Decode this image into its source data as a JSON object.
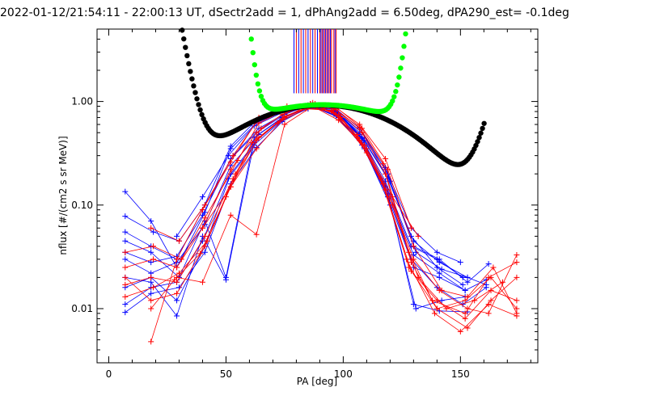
{
  "chart_data": {
    "type": "scatter",
    "title": "2022-01-12/21:54:11 - 22:00:13 UT, dSectr2add = 1, dPhAng2add = 6.50deg, dPA290_est=  -0.1deg",
    "xlabel": "PA [deg]",
    "ylabel": "nflux [#/(cm2 s sr MeV)]",
    "xlim": [
      -5,
      183
    ],
    "ylim": [
      0.003,
      5
    ],
    "yscale": "log",
    "x_ticks": [
      "0",
      "50",
      "100",
      "150"
    ],
    "y_ticks": [
      "0.01",
      "0.10",
      "1.00"
    ],
    "grid": false,
    "colors": {
      "red": "#ff0000",
      "blue": "#0000ff",
      "black": "#000000",
      "green": "#00ff00"
    },
    "vertical_lines": {
      "red": [
        80,
        82,
        84,
        86,
        88,
        90,
        91,
        92,
        93,
        94,
        95,
        96,
        97
      ],
      "blue": [
        79,
        81,
        83,
        85,
        87,
        89,
        90.5,
        91.5,
        92.5,
        93.5,
        94.5,
        96.5
      ]
    },
    "red_series": [
      [
        [
          7,
          0.035
        ],
        [
          19,
          0.04
        ],
        [
          31,
          0.03
        ],
        [
          41,
          0.075
        ],
        [
          55,
          0.27
        ],
        [
          64,
          0.62
        ],
        [
          75,
          0.82
        ],
        [
          86,
          0.94
        ],
        [
          96,
          0.86
        ],
        [
          107,
          0.56
        ],
        [
          117,
          0.25
        ],
        [
          128,
          0.035
        ],
        [
          138,
          0.012
        ],
        [
          152,
          0.009
        ],
        [
          162,
          0.02
        ],
        [
          174,
          0.028
        ]
      ],
      [
        [
          7,
          0.025
        ],
        [
          19,
          0.03
        ],
        [
          29,
          0.025
        ],
        [
          40,
          0.06
        ],
        [
          52,
          0.22
        ],
        [
          63,
          0.5
        ],
        [
          74,
          0.75
        ],
        [
          85,
          0.92
        ],
        [
          97,
          0.83
        ],
        [
          108,
          0.5
        ],
        [
          118,
          0.2
        ],
        [
          129,
          0.028
        ],
        [
          140,
          0.01
        ],
        [
          153,
          0.0065
        ],
        [
          163,
          0.012
        ],
        [
          174,
          0.02
        ]
      ],
      [
        [
          7,
          0.017
        ],
        [
          18,
          0.02
        ],
        [
          29,
          0.018
        ],
        [
          41,
          0.05
        ],
        [
          53,
          0.18
        ],
        [
          64,
          0.45
        ],
        [
          75,
          0.72
        ],
        [
          86,
          0.9
        ],
        [
          95,
          0.8
        ],
        [
          106,
          0.45
        ],
        [
          117,
          0.16
        ],
        [
          129,
          0.023
        ],
        [
          140,
          0.012
        ],
        [
          152,
          0.008
        ],
        [
          163,
          0.015
        ],
        [
          174,
          0.012
        ]
      ],
      [
        [
          7,
          0.013
        ],
        [
          19,
          0.016
        ],
        [
          30,
          0.022
        ],
        [
          42,
          0.045
        ],
        [
          54,
          0.2
        ],
        [
          65,
          0.55
        ],
        [
          76,
          0.8
        ],
        [
          87,
          0.93
        ],
        [
          98,
          0.75
        ],
        [
          109,
          0.38
        ],
        [
          120,
          0.12
        ],
        [
          130,
          0.03
        ],
        [
          141,
          0.015
        ],
        [
          153,
          0.01
        ],
        [
          162,
          0.009
        ],
        [
          174,
          0.033
        ]
      ],
      [
        [
          7,
          0.02
        ],
        [
          18,
          0.012
        ],
        [
          29,
          0.014
        ],
        [
          41,
          0.04
        ],
        [
          52,
          0.15
        ],
        [
          63,
          0.42
        ],
        [
          74,
          0.68
        ],
        [
          85,
          0.88
        ],
        [
          96,
          0.78
        ],
        [
          107,
          0.42
        ],
        [
          118,
          0.14
        ],
        [
          128,
          0.025
        ],
        [
          140,
          0.01
        ],
        [
          152,
          0.012
        ],
        [
          163,
          0.02
        ],
        [
          174,
          0.01
        ]
      ],
      [
        [
          18,
          0.0048
        ],
        [
          29,
          0.03
        ],
        [
          40,
          0.09
        ],
        [
          52,
          0.26
        ],
        [
          64,
          0.7
        ],
        [
          76,
          0.86
        ],
        [
          88,
          0.95
        ],
        [
          99,
          0.7
        ],
        [
          110,
          0.32
        ],
        [
          121,
          0.1
        ],
        [
          132,
          0.02
        ],
        [
          144,
          0.01
        ],
        [
          156,
          0.012
        ],
        [
          168,
          0.018
        ]
      ],
      [
        [
          18,
          0.06
        ],
        [
          30,
          0.045
        ],
        [
          41,
          0.1
        ],
        [
          53,
          0.3
        ],
        [
          64,
          0.68
        ],
        [
          76,
          0.9
        ],
        [
          87,
          0.97
        ],
        [
          97,
          0.88
        ],
        [
          108,
          0.55
        ],
        [
          119,
          0.22
        ],
        [
          130,
          0.04
        ],
        [
          142,
          0.015
        ],
        [
          153,
          0.013
        ],
        [
          164,
          0.025
        ],
        [
          174,
          0.009
        ]
      ],
      [
        [
          18,
          0.01
        ],
        [
          28,
          0.019
        ],
        [
          39,
          0.034
        ],
        [
          50,
          0.12
        ],
        [
          61,
          0.4
        ],
        [
          72,
          0.62
        ],
        [
          84,
          0.85
        ],
        [
          95,
          0.82
        ],
        [
          106,
          0.48
        ],
        [
          116,
          0.18
        ],
        [
          127,
          0.03
        ],
        [
          139,
          0.009
        ],
        [
          150,
          0.006
        ],
        [
          162,
          0.011
        ],
        [
          174,
          0.0085
        ]
      ],
      [
        [
          29,
          0.02
        ],
        [
          40,
          0.018
        ],
        [
          52,
          0.08
        ],
        [
          63,
          0.052
        ],
        [
          75,
          0.6
        ],
        [
          87,
          0.9
        ],
        [
          98,
          0.66
        ],
        [
          110,
          0.35
        ],
        [
          121,
          0.12
        ],
        [
          132,
          0.05
        ]
      ],
      [
        [
          40,
          0.06
        ],
        [
          52,
          0.15
        ],
        [
          63,
          0.35
        ],
        [
          75,
          0.7
        ],
        [
          86,
          0.95
        ],
        [
          96,
          0.9
        ],
        [
          107,
          0.6
        ],
        [
          118,
          0.28
        ],
        [
          129,
          0.06
        ]
      ]
    ],
    "blue_series": [
      [
        [
          7,
          0.135
        ],
        [
          18,
          0.07
        ],
        [
          29,
          0.025
        ],
        [
          41,
          0.085
        ],
        [
          52,
          0.35
        ],
        [
          63,
          0.62
        ],
        [
          75,
          0.82
        ],
        [
          86,
          0.9
        ],
        [
          97,
          0.8
        ],
        [
          108,
          0.5
        ],
        [
          119,
          0.2
        ],
        [
          130,
          0.04
        ],
        [
          141,
          0.03
        ],
        [
          153,
          0.018
        ],
        [
          162,
          0.027
        ]
      ],
      [
        [
          7,
          0.078
        ],
        [
          19,
          0.055
        ],
        [
          30,
          0.045
        ],
        [
          41,
          0.1
        ],
        [
          53,
          0.3
        ],
        [
          64,
          0.55
        ],
        [
          76,
          0.78
        ],
        [
          87,
          0.92
        ],
        [
          98,
          0.76
        ],
        [
          109,
          0.42
        ],
        [
          120,
          0.17
        ],
        [
          131,
          0.035
        ],
        [
          142,
          0.024
        ],
        [
          153,
          0.02
        ],
        [
          161,
          0.017
        ]
      ],
      [
        [
          7,
          0.055
        ],
        [
          18,
          0.04
        ],
        [
          29,
          0.03
        ],
        [
          40,
          0.09
        ],
        [
          52,
          0.37
        ],
        [
          63,
          0.66
        ],
        [
          74,
          0.8
        ],
        [
          86,
          0.95
        ],
        [
          97,
          0.72
        ],
        [
          108,
          0.38
        ],
        [
          119,
          0.12
        ],
        [
          130,
          0.025
        ],
        [
          141,
          0.02
        ],
        [
          152,
          0.015
        ],
        [
          161,
          0.019
        ]
      ],
      [
        [
          7,
          0.045
        ],
        [
          18,
          0.035
        ],
        [
          30,
          0.02
        ],
        [
          41,
          0.07
        ],
        [
          50,
          0.02
        ],
        [
          62,
          0.45
        ],
        [
          74,
          0.7
        ],
        [
          85,
          0.88
        ],
        [
          96,
          0.84
        ],
        [
          107,
          0.46
        ],
        [
          118,
          0.15
        ],
        [
          129,
          0.03
        ],
        [
          140,
          0.016
        ],
        [
          151,
          0.011
        ],
        [
          161,
          0.016
        ]
      ],
      [
        [
          7,
          0.035
        ],
        [
          18,
          0.028
        ],
        [
          29,
          0.032
        ],
        [
          40,
          0.08
        ],
        [
          52,
          0.28
        ],
        [
          63,
          0.5
        ],
        [
          75,
          0.75
        ],
        [
          86,
          0.93
        ],
        [
          97,
          0.78
        ],
        [
          108,
          0.4
        ],
        [
          119,
          0.13
        ],
        [
          130,
          0.011
        ],
        [
          141,
          0.0095
        ],
        [
          153,
          0.0093
        ]
      ],
      [
        [
          7,
          0.03
        ],
        [
          18,
          0.022
        ],
        [
          29,
          0.028
        ],
        [
          41,
          0.065
        ],
        [
          52,
          0.24
        ],
        [
          64,
          0.48
        ],
        [
          75,
          0.72
        ],
        [
          87,
          0.9
        ],
        [
          98,
          0.7
        ],
        [
          109,
          0.35
        ],
        [
          120,
          0.1
        ],
        [
          131,
          0.01
        ],
        [
          142,
          0.012
        ],
        [
          152,
          0.013
        ]
      ],
      [
        [
          7,
          0.02
        ],
        [
          18,
          0.018
        ],
        [
          29,
          0.0085
        ],
        [
          40,
          0.05
        ],
        [
          50,
          0.019
        ],
        [
          62,
          0.4
        ],
        [
          73,
          0.65
        ],
        [
          85,
          0.85
        ],
        [
          96,
          0.86
        ],
        [
          107,
          0.48
        ],
        [
          118,
          0.17
        ],
        [
          129,
          0.04
        ],
        [
          140,
          0.03
        ],
        [
          151,
          0.02
        ]
      ],
      [
        [
          7,
          0.016
        ],
        [
          18,
          0.02
        ],
        [
          29,
          0.012
        ],
        [
          41,
          0.04
        ],
        [
          52,
          0.2
        ],
        [
          63,
          0.42
        ],
        [
          75,
          0.7
        ],
        [
          86,
          0.9
        ],
        [
          97,
          0.74
        ],
        [
          108,
          0.44
        ],
        [
          119,
          0.14
        ],
        [
          130,
          0.033
        ],
        [
          141,
          0.022
        ],
        [
          152,
          0.015
        ]
      ],
      [
        [
          7,
          0.011
        ],
        [
          18,
          0.016
        ],
        [
          29,
          0.018
        ],
        [
          40,
          0.045
        ],
        [
          51,
          0.18
        ],
        [
          62,
          0.38
        ],
        [
          74,
          0.66
        ],
        [
          85,
          0.87
        ],
        [
          96,
          0.82
        ],
        [
          107,
          0.5
        ],
        [
          118,
          0.22
        ],
        [
          129,
          0.05
        ],
        [
          140,
          0.025
        ],
        [
          151,
          0.017
        ]
      ],
      [
        [
          7,
          0.0092
        ],
        [
          18,
          0.014
        ],
        [
          30,
          0.016
        ],
        [
          41,
          0.035
        ],
        [
          52,
          0.16
        ],
        [
          63,
          0.36
        ],
        [
          74,
          0.64
        ],
        [
          86,
          0.9
        ],
        [
          97,
          0.8
        ],
        [
          108,
          0.45
        ],
        [
          119,
          0.18
        ],
        [
          130,
          0.045
        ],
        [
          141,
          0.028
        ],
        [
          153,
          0.02
        ]
      ],
      [
        [
          29,
          0.05
        ],
        [
          40,
          0.12
        ],
        [
          51,
          0.3
        ],
        [
          62,
          0.58
        ],
        [
          74,
          0.78
        ],
        [
          85,
          0.92
        ],
        [
          96,
          0.88
        ],
        [
          107,
          0.55
        ],
        [
          118,
          0.23
        ],
        [
          129,
          0.06
        ],
        [
          140,
          0.035
        ],
        [
          150,
          0.028
        ]
      ]
    ],
    "black_fit": {
      "x_start": 21.5,
      "x_end": 160.3,
      "center": 91,
      "amplitude": 0.92,
      "exponent": 2.7,
      "left_rise": 8.0,
      "right_rise": 4.5
    },
    "green_fit": {
      "x_start": 19.5,
      "x_end": 143,
      "center": 91,
      "amplitude": 0.93,
      "exponent": 2.2,
      "left_rise": 30.0,
      "right_rise": 22.0
    }
  }
}
